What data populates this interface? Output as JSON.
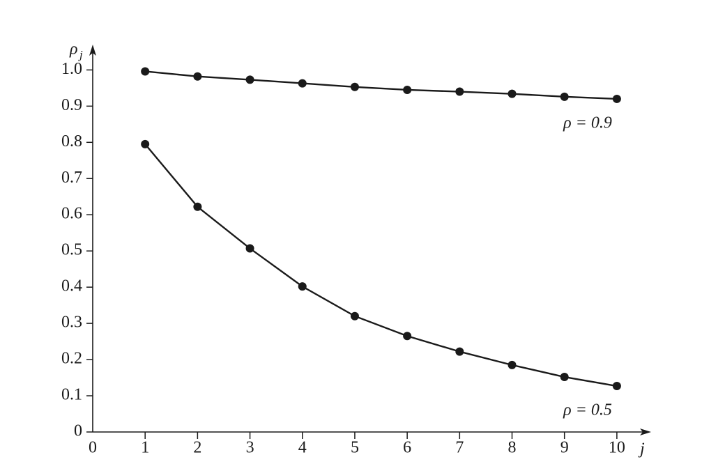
{
  "chart_data": {
    "type": "line",
    "y_label": {
      "symbol": "ρ",
      "subscript": "j"
    },
    "x_label": "j",
    "x": [
      1,
      2,
      3,
      4,
      5,
      6,
      7,
      8,
      9,
      10
    ],
    "series": [
      {
        "name": "ρ = 0.9",
        "color": "#1a1a1a",
        "values": [
          0.996,
          0.982,
          0.973,
          0.963,
          0.953,
          0.945,
          0.94,
          0.934,
          0.926,
          0.92
        ]
      },
      {
        "name": "ρ = 0.5",
        "color": "#1a1a1a",
        "values": [
          0.795,
          0.622,
          0.507,
          0.402,
          0.32,
          0.265,
          0.222,
          0.185,
          0.152,
          0.127
        ]
      }
    ],
    "xlim": [
      0,
      10.6
    ],
    "ylim": [
      0,
      1.07
    ],
    "xticks": [
      0,
      1,
      2,
      3,
      4,
      5,
      6,
      7,
      8,
      9,
      10
    ],
    "yticks": [
      0,
      0.1,
      0.2,
      0.3,
      0.4,
      0.5,
      0.6,
      0.7,
      0.8,
      0.9,
      {
        "value": 1,
        "label": "1.0"
      }
    ],
    "grid": false
  }
}
